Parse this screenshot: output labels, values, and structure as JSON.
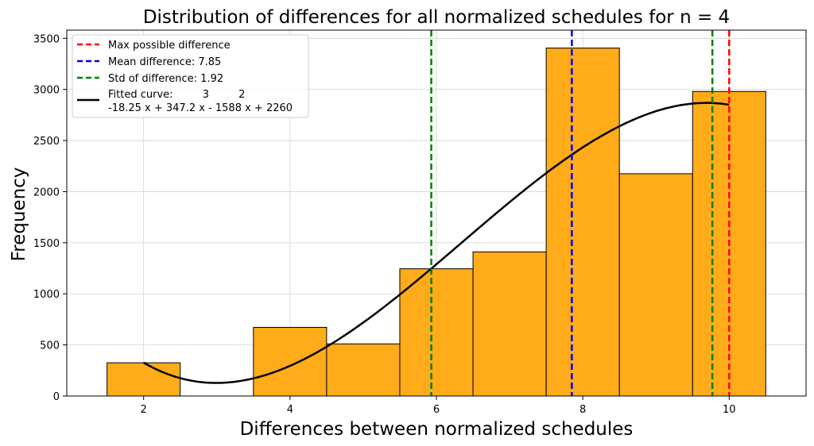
{
  "chart_data": {
    "type": "bar",
    "title": "Distribution of differences for all normalized schedules for n = 4",
    "xlabel": "Differences between normalized schedules",
    "ylabel": "Frequency",
    "xlim": [
      0.95,
      11.05
    ],
    "ylim": [
      0,
      3580
    ],
    "grid": true,
    "legend_position": "top-left",
    "xticks": [
      2,
      4,
      6,
      8,
      10
    ],
    "yticks": [
      0,
      500,
      1000,
      1500,
      2000,
      2500,
      3000,
      3500
    ],
    "bar_color": "#ffab1a",
    "bar_edge_color": "#000000",
    "bins": [
      {
        "x": 2,
        "value": 325
      },
      {
        "x": 4,
        "value": 672
      },
      {
        "x": 5,
        "value": 510
      },
      {
        "x": 6,
        "value": 1245
      },
      {
        "x": 7,
        "value": 1410
      },
      {
        "x": 8,
        "value": 3405
      },
      {
        "x": 9,
        "value": 2175
      },
      {
        "x": 10,
        "value": 2980
      }
    ],
    "bin_width": 1,
    "vlines": [
      {
        "name": "Max possible difference",
        "x": 10,
        "color": "#ff0000"
      },
      {
        "name": "Mean difference: 7.85",
        "x": 7.85,
        "color": "#0000ff"
      },
      {
        "name": "Std of difference: 1.92",
        "x": 5.93,
        "color": "#008000"
      },
      {
        "name": "",
        "x": 9.77,
        "color": "#008000"
      }
    ],
    "fitted_curve": {
      "label_line1": "Fitted curve:         3         2",
      "label_line2": "-18.25 x + 347.2 x - 1588 x + 2260",
      "coefficients": [
        -18.25,
        347.2,
        -1588,
        2260
      ],
      "x_range": [
        2,
        10
      ],
      "color": "#000000"
    }
  }
}
